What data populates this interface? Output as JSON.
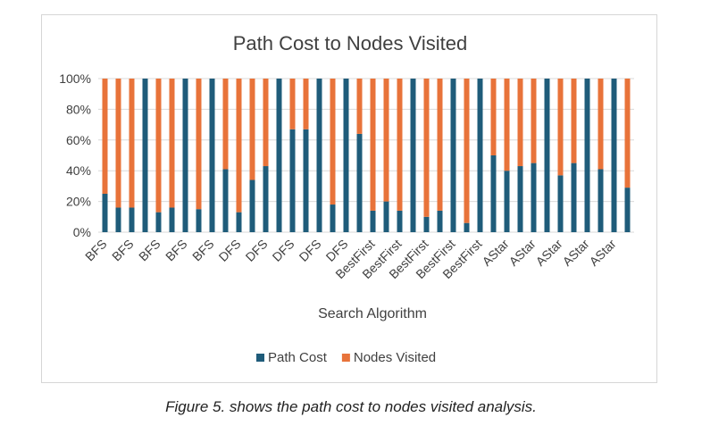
{
  "chart_data": {
    "type": "bar",
    "stacked": "percent",
    "title": "Path Cost to Nodes Visited",
    "xlabel": "Search Algorithm",
    "ylabel": "",
    "ylim": [
      0,
      100
    ],
    "y_ticks": [
      "0%",
      "20%",
      "40%",
      "60%",
      "80%",
      "100%"
    ],
    "grid": true,
    "legend_position": "bottom",
    "categories": [
      "BFS",
      "",
      "BFS",
      "",
      "BFS",
      "",
      "BFS",
      "",
      "BFS",
      "",
      "DFS",
      "",
      "DFS",
      "",
      "DFS",
      "",
      "DFS",
      "",
      "DFS",
      "",
      "BestFirst",
      "",
      "BestFirst",
      "",
      "BestFirst",
      "",
      "BestFirst",
      "",
      "BestFirst",
      "",
      "AStar",
      "",
      "AStar",
      "",
      "AStar",
      "",
      "AStar",
      "",
      "AStar",
      ""
    ],
    "series": [
      {
        "name": "Path Cost",
        "color": "#1f5c7a",
        "values": [
          25,
          16,
          16,
          100,
          13,
          16,
          100,
          15,
          100,
          41,
          13,
          34,
          43,
          100,
          67,
          67,
          100,
          18,
          100,
          64,
          14,
          20,
          14,
          100,
          10,
          14,
          100,
          6,
          100,
          50,
          40,
          43,
          45,
          100,
          37,
          45,
          100,
          41,
          100,
          29
        ]
      },
      {
        "name": "Nodes Visited",
        "color": "#e8733a",
        "values": [
          75,
          84,
          84,
          0,
          87,
          84,
          0,
          85,
          0,
          59,
          87,
          66,
          57,
          0,
          33,
          33,
          0,
          82,
          0,
          36,
          86,
          80,
          86,
          0,
          90,
          86,
          0,
          94,
          0,
          50,
          60,
          57,
          55,
          0,
          63,
          55,
          0,
          59,
          0,
          71
        ]
      }
    ]
  },
  "caption": "Figure 5. shows the path cost to nodes visited analysis."
}
